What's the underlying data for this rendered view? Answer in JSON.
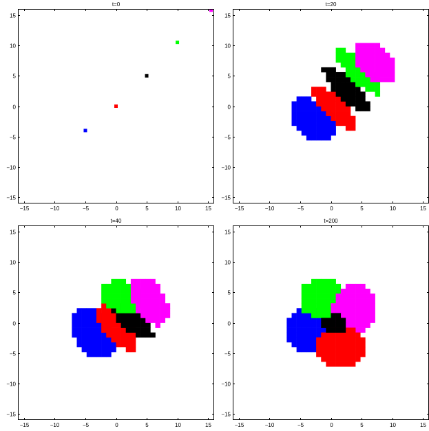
{
  "chart_data": [
    {
      "type": "scatter",
      "title": "t=0",
      "xlim": [
        -16,
        16
      ],
      "ylim": [
        -16,
        16
      ],
      "xticks": [
        -15,
        -10,
        -5,
        0,
        5,
        10,
        15
      ],
      "yticks": [
        -15,
        -10,
        -5,
        0,
        5,
        10,
        15
      ],
      "xtick_labels": [
        "−15",
        "−10",
        "−5",
        "0",
        "5",
        "10",
        "15"
      ],
      "ytick_labels": [
        "−15",
        "−10",
        "−5",
        "0",
        "5",
        "10",
        "15"
      ],
      "series": [
        {
          "color": "#0000ff",
          "points": [
            [
              -5,
              -4
            ]
          ]
        },
        {
          "color": "#ff0000",
          "points": [
            [
              0,
              0
            ]
          ]
        },
        {
          "color": "#000000",
          "points": [
            [
              5,
              5
            ]
          ]
        },
        {
          "color": "#00ff00",
          "points": [
            [
              10,
              10.5
            ]
          ]
        },
        {
          "color": "#ff00ff",
          "points": [
            [
              15.5,
              15.8
            ]
          ]
        }
      ]
    },
    {
      "type": "scatter",
      "title": "t=20",
      "xlim": [
        -16,
        16
      ],
      "ylim": [
        -16,
        16
      ],
      "xticks": [
        -15,
        -10,
        -5,
        0,
        5,
        10,
        15
      ],
      "yticks": [
        -15,
        -10,
        -5,
        0,
        5,
        10,
        15
      ],
      "xtick_labels": [
        "−15",
        "−10",
        "−5",
        "0",
        "5",
        "10",
        "15"
      ],
      "ytick_labels": [
        "−15",
        "−10",
        "−5",
        "0",
        "5",
        "10",
        "15"
      ],
      "regions": [
        {
          "color": "#0000ff",
          "cx": -3.0,
          "cy": -2.2,
          "rx": 4.4,
          "ry": 2.9,
          "angle": -45
        },
        {
          "color": "#ff0000",
          "cx": 0.5,
          "cy": -0.2,
          "rx": 5.0,
          "ry": 1.7,
          "angle": -45
        },
        {
          "color": "#000000",
          "cx": 2.5,
          "cy": 2.8,
          "rx": 5.0,
          "ry": 1.7,
          "angle": -45
        },
        {
          "color": "#00ff00",
          "cx": 4.6,
          "cy": 5.6,
          "rx": 5.0,
          "ry": 1.7,
          "angle": -45
        },
        {
          "color": "#ff00ff",
          "cx": 7.3,
          "cy": 7.2,
          "rx": 4.2,
          "ry": 2.6,
          "angle": -45
        }
      ]
    },
    {
      "type": "scatter",
      "title": "t=40",
      "xlim": [
        -16,
        16
      ],
      "ylim": [
        -16,
        16
      ],
      "xticks": [
        -15,
        -10,
        -5,
        0,
        5,
        10,
        15
      ],
      "yticks": [
        -15,
        -10,
        -5,
        0,
        5,
        10,
        15
      ],
      "xtick_labels": [
        "−15",
        "−10",
        "−5",
        "0",
        "5",
        "10",
        "15"
      ],
      "ytick_labels": [
        "−15",
        "−10",
        "−5",
        "0",
        "5",
        "10",
        "15"
      ],
      "regions": [
        {
          "color": "#0000ff",
          "cx": -3.8,
          "cy": -1.7,
          "rx": 4.7,
          "ry": 3.0,
          "angle": -55
        },
        {
          "color": "#ff0000",
          "cx": 0.2,
          "cy": -0.9,
          "rx": 4.7,
          "ry": 2.0,
          "angle": -50
        },
        {
          "color": "#000000",
          "cx": 2.8,
          "cy": 0.1,
          "rx": 4.0,
          "ry": 1.6,
          "angle": -40
        },
        {
          "color": "#00ff00",
          "cx": 0.9,
          "cy": 4.3,
          "rx": 3.6,
          "ry": 2.6,
          "angle": -20
        },
        {
          "color": "#ff00ff",
          "cx": 5.5,
          "cy": 3.5,
          "rx": 4.4,
          "ry": 2.6,
          "angle": -60
        }
      ]
    },
    {
      "type": "scatter",
      "title": "t=200",
      "xlim": [
        -16,
        16
      ],
      "ylim": [
        -16,
        16
      ],
      "xticks": [
        -15,
        -10,
        -5,
        0,
        5,
        10,
        15
      ],
      "yticks": [
        -15,
        -10,
        -5,
        0,
        5,
        10,
        15
      ],
      "xtick_labels": [
        "−15",
        "−10",
        "−5",
        "0",
        "5",
        "10",
        "15"
      ],
      "ytick_labels": [
        "−15",
        "−10",
        "−5",
        "0",
        "5",
        "10",
        "15"
      ],
      "regions": [
        {
          "color": "#0000ff",
          "cx": -3.8,
          "cy": -1.3,
          "rx": 3.5,
          "ry": 3.7,
          "angle": 0
        },
        {
          "color": "#00ff00",
          "cx": -1.5,
          "cy": 4.0,
          "rx": 3.6,
          "ry": 3.4,
          "angle": 0
        },
        {
          "color": "#ff00ff",
          "cx": 3.8,
          "cy": 2.3,
          "rx": 3.5,
          "ry": 4.2,
          "angle": 0
        },
        {
          "color": "#ff0000",
          "cx": 1.5,
          "cy": -4.0,
          "rx": 4.0,
          "ry": 3.4,
          "angle": 0
        },
        {
          "color": "#000000",
          "cx": 0.5,
          "cy": -0.3,
          "rx": 1.9,
          "ry": 1.7,
          "angle": 0
        }
      ]
    }
  ]
}
